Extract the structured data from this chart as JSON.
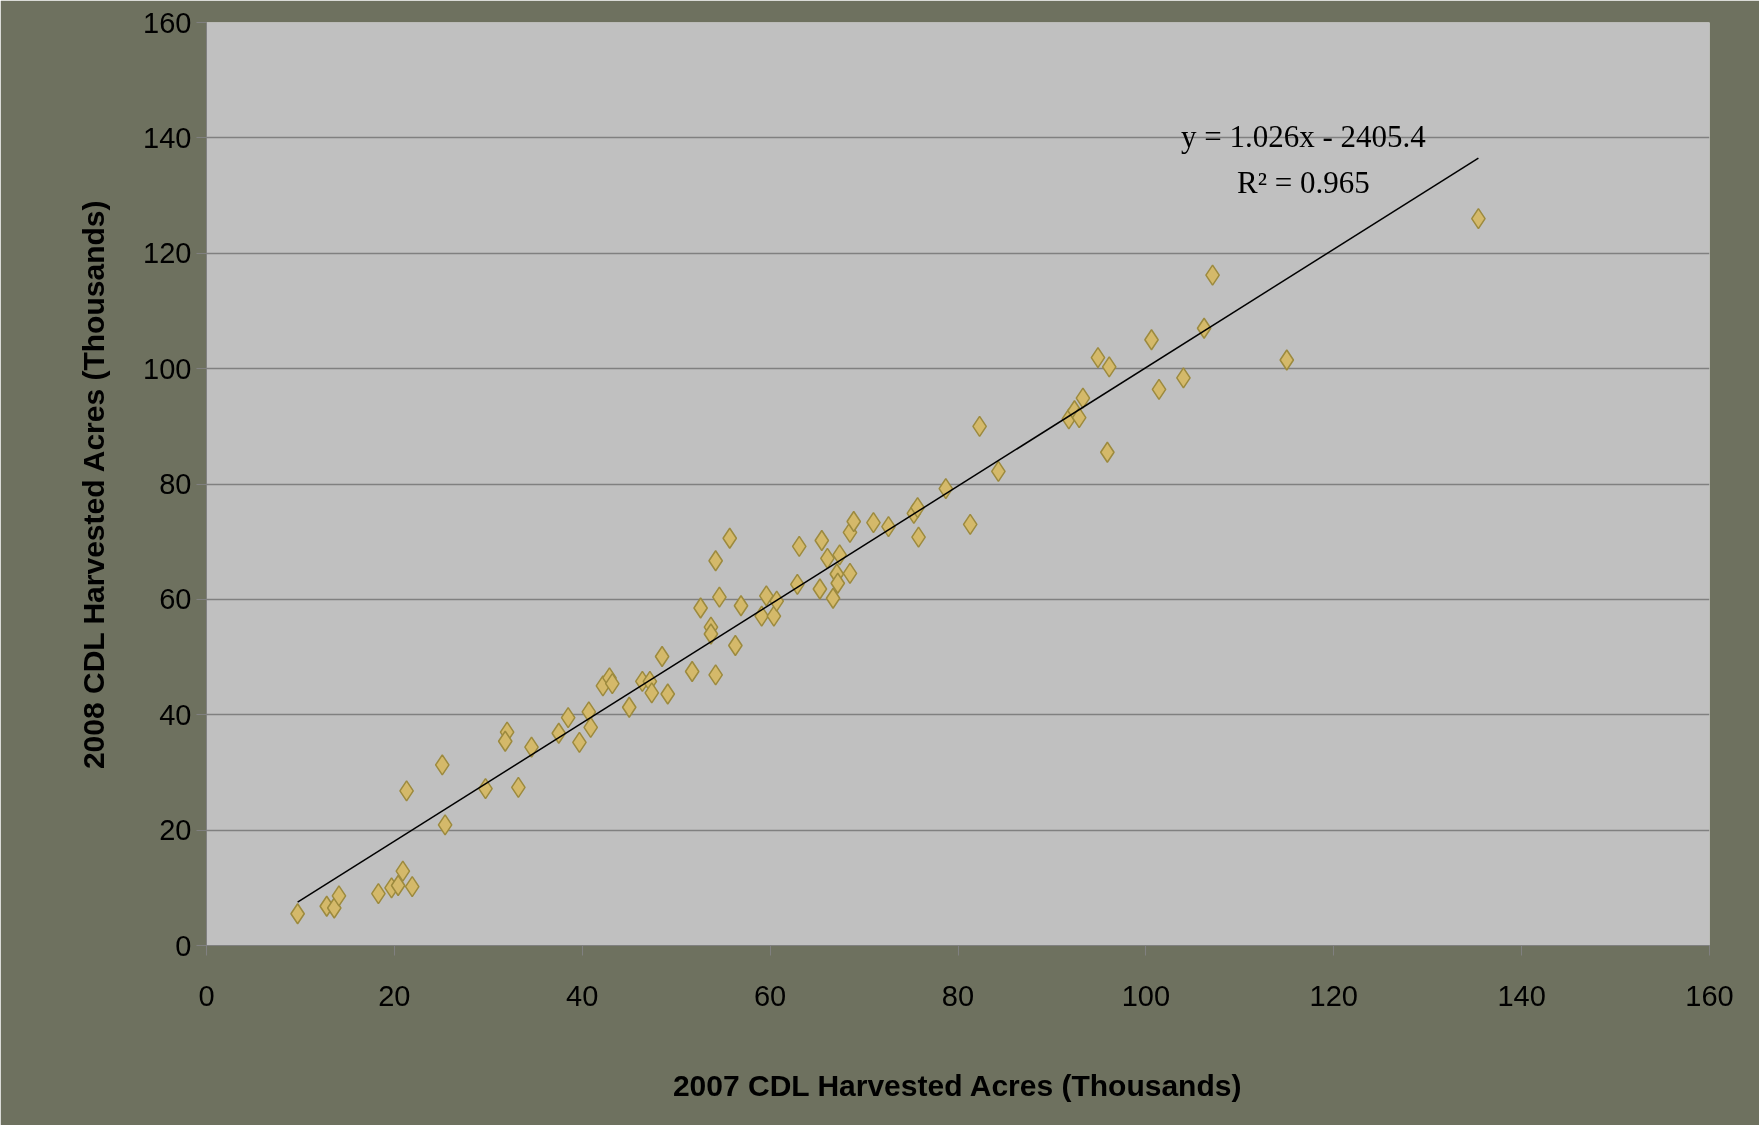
{
  "chart_data": {
    "type": "scatter",
    "xlabel": "2007 CDL Harvested Acres (Thousands)",
    "ylabel": "2008 CDL Harvested Acres (Thousands)",
    "xlim": [
      0,
      160
    ],
    "ylim": [
      0,
      160
    ],
    "xticks": [
      0,
      20,
      40,
      60,
      80,
      100,
      120,
      140,
      160
    ],
    "yticks": [
      0,
      20,
      40,
      60,
      80,
      100,
      120,
      140,
      160
    ],
    "grid": "y",
    "annotations": [
      "y = 1.026x - 2405.4",
      "R² = 0.965"
    ],
    "series": [
      {
        "marker": "diamond",
        "color": "#d4b96a",
        "x": [
          9.7,
          12.8,
          13.6,
          14.1,
          18.3,
          19.7,
          20.4,
          20.9,
          21.9,
          21.3,
          25.1,
          25.4,
          29.7,
          32.0,
          31.8,
          33.2,
          34.6,
          37.5,
          38.5,
          39.7,
          40.7,
          40.9,
          42.2,
          42.9,
          43.2,
          45.0,
          46.4,
          47.2,
          47.4,
          48.5,
          49.1,
          51.7,
          52.6,
          53.7,
          53.7,
          54.2,
          54.2,
          54.6,
          55.7,
          56.3,
          56.9,
          59.1,
          59.6,
          60.4,
          60.7,
          62.9,
          63.1,
          65.3,
          65.5,
          66.1,
          66.7,
          67.1,
          67.4,
          67.2,
          68.5,
          68.5,
          68.9,
          71.0,
          72.6,
          75.3,
          75.7,
          75.8,
          78.7,
          81.3,
          82.3,
          84.3,
          91.8,
          92.4,
          92.9,
          93.3,
          94.9,
          95.9,
          96.1,
          100.6,
          101.4,
          104.0,
          106.2,
          107.1,
          115.0,
          135.4
        ],
        "values": [
          5.5,
          6.8,
          6.5,
          8.6,
          9.0,
          10.0,
          10.4,
          12.9,
          10.2,
          26.8,
          31.3,
          20.9,
          27.2,
          37.0,
          35.4,
          27.4,
          34.4,
          36.8,
          39.5,
          35.2,
          40.5,
          37.8,
          45.0,
          46.4,
          45.4,
          41.3,
          45.8,
          45.8,
          43.8,
          50.1,
          43.6,
          47.5,
          58.5,
          55.2,
          54.0,
          46.9,
          66.7,
          60.4,
          70.6,
          52.0,
          58.9,
          57.1,
          60.6,
          57.1,
          59.7,
          62.6,
          69.2,
          61.8,
          70.2,
          67.1,
          60.2,
          64.4,
          67.7,
          62.8,
          64.5,
          71.6,
          73.5,
          73.3,
          72.6,
          74.9,
          75.9,
          70.8,
          79.2,
          73.0,
          90.0,
          82.2,
          91.3,
          92.7,
          91.5,
          94.9,
          101.9,
          85.5,
          100.3,
          105.0,
          96.4,
          98.4,
          107.0,
          116.2,
          101.5,
          126.0
        ]
      },
      {
        "type": "line",
        "color": "#000000",
        "x": [
          9.7,
          135.4
        ],
        "values": [
          7.5,
          136.5
        ]
      }
    ]
  }
}
